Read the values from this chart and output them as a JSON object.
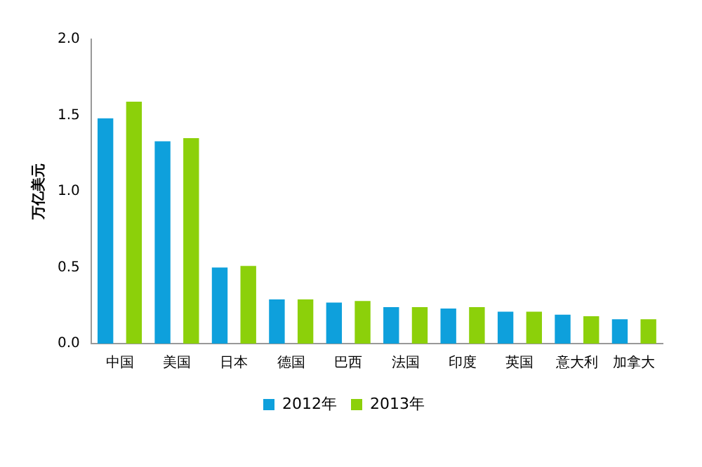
{
  "chart_data": {
    "type": "bar",
    "ylabel": "万亿美元",
    "categories": [
      "中国",
      "美国",
      "日本",
      "德国",
      "巴西",
      "法国",
      "印度",
      "英国",
      "意大利",
      "加拿大"
    ],
    "series": [
      {
        "name": "2012年",
        "color": "#0ea0dc",
        "values": [
          1.48,
          1.33,
          0.5,
          0.29,
          0.27,
          0.24,
          0.23,
          0.21,
          0.19,
          0.16
        ]
      },
      {
        "name": "2013年",
        "color": "#8cd00a",
        "values": [
          1.59,
          1.35,
          0.51,
          0.29,
          0.28,
          0.24,
          0.24,
          0.21,
          0.18,
          0.16
        ]
      }
    ],
    "ylim": [
      0,
      2
    ],
    "yticks": [
      {
        "value": 0,
        "label": "0.0"
      },
      {
        "value": 0.5,
        "label": "0.5"
      },
      {
        "value": 1,
        "label": "1.0"
      },
      {
        "value": 1.5,
        "label": "1.5"
      },
      {
        "value": 2,
        "label": "2.0"
      }
    ],
    "grid": false,
    "legend": "bottom"
  }
}
